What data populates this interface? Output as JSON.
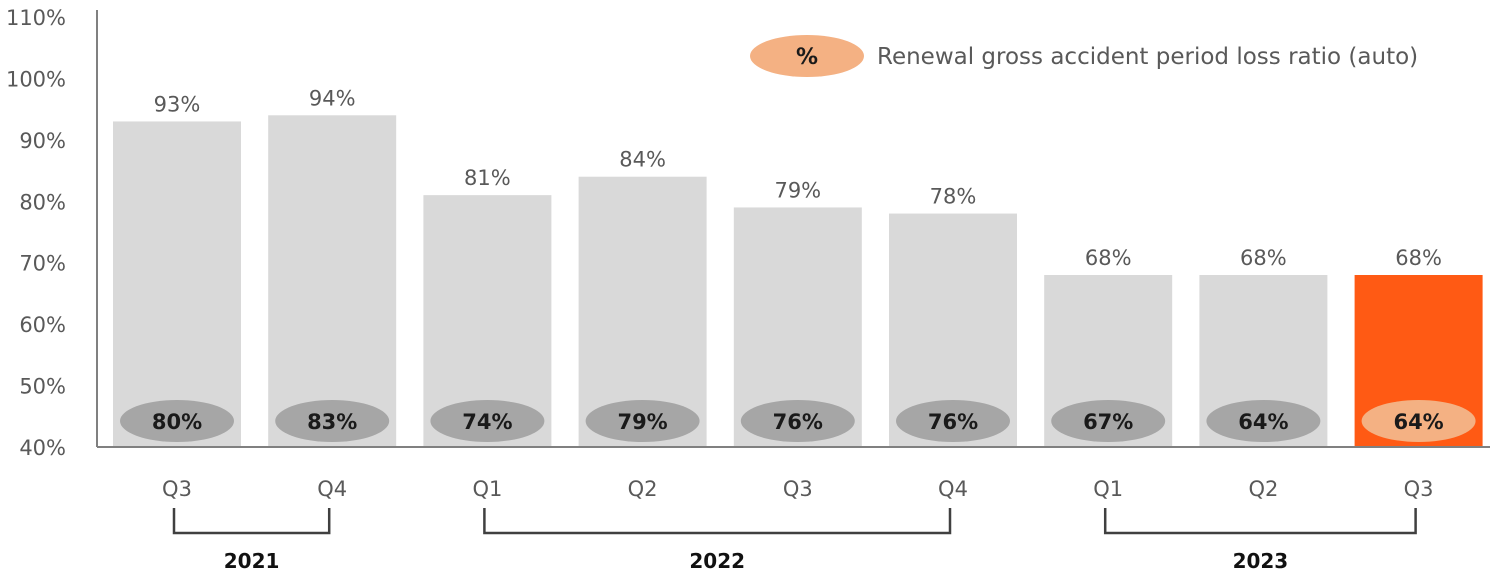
{
  "chart_data": {
    "type": "bar",
    "categories": [
      "Q3",
      "Q4",
      "Q1",
      "Q2",
      "Q3",
      "Q4",
      "Q1",
      "Q2",
      "Q3"
    ],
    "series": [
      {
        "values": [
          93,
          94,
          81,
          84,
          79,
          78,
          68,
          68,
          68
        ],
        "labels": [
          "93%",
          "94%",
          "81%",
          "84%",
          "79%",
          "78%",
          "68%",
          "68%",
          "68%"
        ]
      },
      {
        "name": "Renewal gross accident period loss ratio (auto)",
        "values": [
          80,
          83,
          74,
          79,
          76,
          76,
          67,
          64,
          64
        ],
        "labels": [
          "80%",
          "83%",
          "74%",
          "79%",
          "76%",
          "76%",
          "67%",
          "64%",
          "64%"
        ]
      }
    ],
    "highlight_index": 8,
    "ylim": [
      40,
      110
    ],
    "y_ticks": [
      "40%",
      "50%",
      "60%",
      "70%",
      "80%",
      "90%",
      "100%",
      "110%"
    ],
    "year_groups": [
      {
        "label": "2021",
        "start": 0,
        "end": 1
      },
      {
        "label": "2022",
        "start": 2,
        "end": 5
      },
      {
        "label": "2023",
        "start": 6,
        "end": 8
      }
    ],
    "legend": {
      "symbol": "%",
      "text": "Renewal gross accident period loss ratio (auto)",
      "placement": "top-right"
    },
    "grid": false,
    "colors": {
      "bar": "#d9d9d9",
      "bar_highlight": "#ff5a14",
      "ellipse": "#a6a6a6",
      "ellipse_highlight": "#f4b183",
      "axis": "#808080",
      "bracket": "#404040"
    }
  }
}
